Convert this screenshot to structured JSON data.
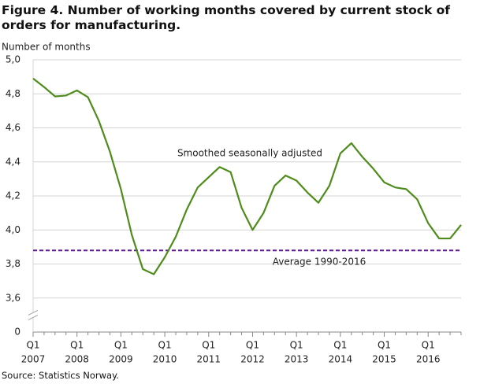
{
  "chart_data": {
    "type": "line",
    "title": "Figure 4. Number of working months covered by current stock of orders for manufacturing.",
    "y_label": "Number of months",
    "source": "Source: Statistics Norway.",
    "categories": [
      [
        "Q1",
        "2007"
      ],
      null,
      null,
      null,
      [
        "Q1",
        "2008"
      ],
      null,
      null,
      null,
      [
        "Q1",
        "2009"
      ],
      null,
      null,
      null,
      [
        "Q1",
        "2010"
      ],
      null,
      null,
      null,
      [
        "Q1",
        "2011"
      ],
      null,
      null,
      null,
      [
        "Q1",
        "2012"
      ],
      null,
      null,
      null,
      [
        "Q1",
        "2013"
      ],
      null,
      null,
      null,
      [
        "Q1",
        "2014"
      ],
      null,
      null,
      null,
      [
        "Q1",
        "2015"
      ],
      null,
      null,
      null,
      [
        "Q1",
        "2016"
      ],
      null,
      null,
      null
    ],
    "series": [
      {
        "name": "Smoothed seasonally adjusted",
        "color": "#4e8c1c",
        "values": [
          4.89,
          4.84,
          4.785,
          4.79,
          4.82,
          4.78,
          4.64,
          4.46,
          4.24,
          3.97,
          3.77,
          3.74,
          3.84,
          3.96,
          4.12,
          4.25,
          4.31,
          4.37,
          4.34,
          4.13,
          4.0,
          4.1,
          4.26,
          4.32,
          4.29,
          4.22,
          4.16,
          4.26,
          4.45,
          4.51,
          4.43,
          4.36,
          4.28,
          4.25,
          4.24,
          4.18,
          4.04,
          3.95,
          3.95,
          4.03
        ]
      }
    ],
    "reference_lines": [
      {
        "value": 3.88,
        "label": "Average 1990-2016",
        "color": "#5c1a8c"
      }
    ],
    "ylim": [
      0,
      5.0
    ],
    "yticks": [
      0,
      {
        "value": 3.6,
        "label": "3,6"
      },
      {
        "value": 3.8,
        "label": "3,8"
      },
      {
        "value": 4.0,
        "label": "4,0"
      },
      {
        "value": 4.2,
        "label": "4,2"
      },
      {
        "value": 4.4,
        "label": "4,4"
      },
      {
        "value": 4.6,
        "label": "4,6"
      },
      {
        "value": 4.8,
        "label": "4,8"
      },
      {
        "value": 5.0,
        "label": "5,0"
      }
    ],
    "axis_break": true,
    "grid": true
  }
}
